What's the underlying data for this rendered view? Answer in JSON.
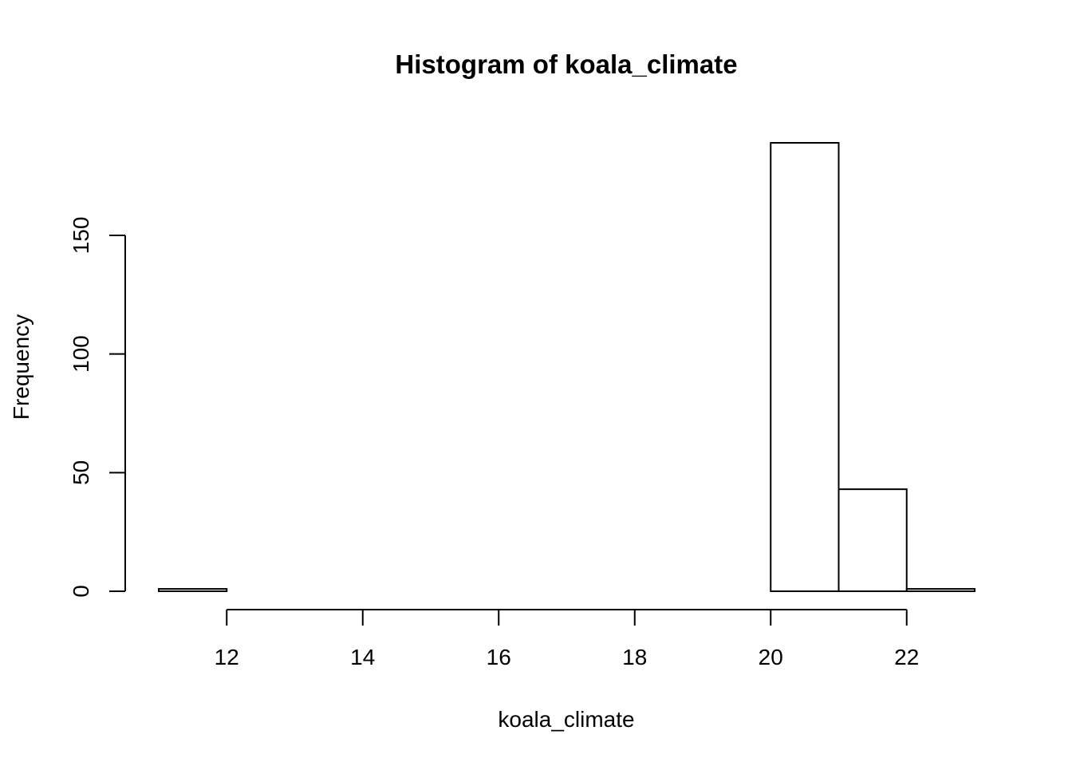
{
  "chart_data": {
    "type": "bar",
    "title": "Histogram of koala_climate",
    "xlabel": "koala_climate",
    "ylabel": "Frequency",
    "bins": [
      {
        "start": 11,
        "end": 12,
        "count": 1
      },
      {
        "start": 12,
        "end": 13,
        "count": 0
      },
      {
        "start": 13,
        "end": 14,
        "count": 0
      },
      {
        "start": 14,
        "end": 15,
        "count": 0
      },
      {
        "start": 15,
        "end": 16,
        "count": 0
      },
      {
        "start": 16,
        "end": 17,
        "count": 0
      },
      {
        "start": 17,
        "end": 18,
        "count": 0
      },
      {
        "start": 18,
        "end": 19,
        "count": 0
      },
      {
        "start": 19,
        "end": 20,
        "count": 0
      },
      {
        "start": 20,
        "end": 21,
        "count": 189
      },
      {
        "start": 21,
        "end": 22,
        "count": 43
      },
      {
        "start": 22,
        "end": 23,
        "count": 1
      }
    ],
    "x_ticks": [
      12,
      14,
      16,
      18,
      20,
      22
    ],
    "y_ticks": [
      0,
      50,
      100,
      150
    ],
    "xlim": [
      11,
      23
    ],
    "ylim": [
      0,
      189
    ],
    "grid": false,
    "legend": "none"
  }
}
